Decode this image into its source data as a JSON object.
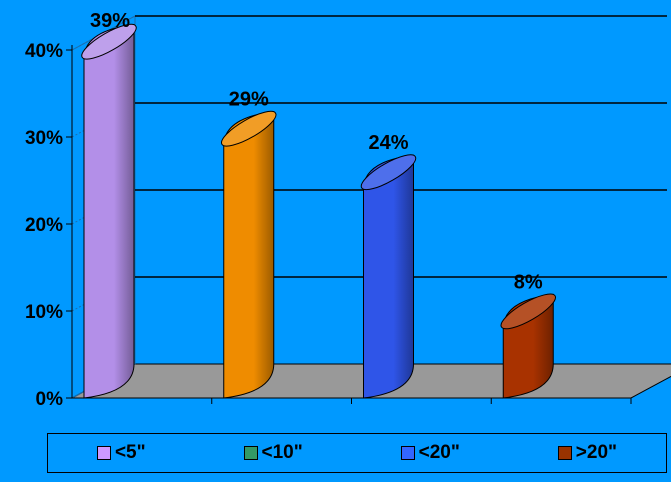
{
  "chart_data": {
    "type": "bar",
    "style": "3d-cylinder",
    "categories": [
      "<5\"",
      "<10\"",
      "<20\"",
      ">20\""
    ],
    "values": [
      39,
      29,
      24,
      8
    ],
    "data_labels": [
      "39%",
      "29%",
      "24%",
      "8%"
    ],
    "colors": [
      "#b38fe8",
      "#ef8c00",
      "#2f55e8",
      "#a83200"
    ],
    "legend_colors": [
      "#cc99ff",
      "#339966",
      "#3366ff",
      "#993300"
    ],
    "y_ticks": [
      "0%",
      "10%",
      "20%",
      "30%",
      "40%"
    ],
    "ylim": [
      0,
      40
    ],
    "grid": true,
    "legend_position": "bottom",
    "background": "#0099ff"
  }
}
